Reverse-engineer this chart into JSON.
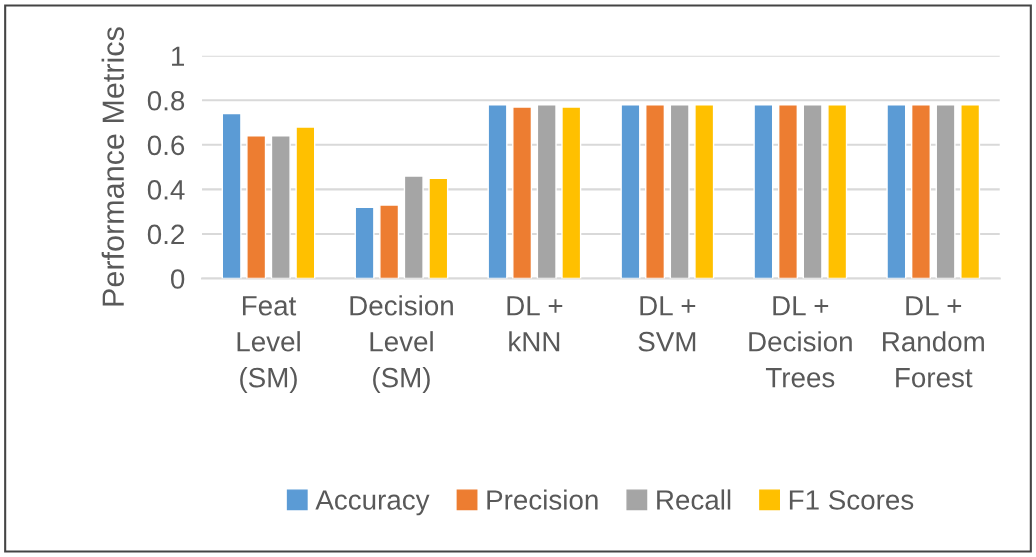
{
  "chart_data": {
    "type": "bar",
    "ylabel": "Performance Metrics",
    "categories": [
      "Feat\nLevel\n(SM)",
      "Decision\nLevel\n(SM)",
      "DL +\nkNN",
      "DL +\nSVM",
      "DL +\nDecision\nTrees",
      "DL +\nRandom\nForest"
    ],
    "series": [
      {
        "name": "Accuracy",
        "color": "#5b9bd5",
        "values": [
          0.74,
          0.32,
          0.78,
          0.78,
          0.78,
          0.78
        ]
      },
      {
        "name": "Precision",
        "color": "#ed7d31",
        "values": [
          0.64,
          0.33,
          0.77,
          0.78,
          0.78,
          0.78
        ]
      },
      {
        "name": "Recall",
        "color": "#a5a5a5",
        "values": [
          0.64,
          0.46,
          0.78,
          0.78,
          0.78,
          0.78
        ]
      },
      {
        "name": "F1 Scores",
        "color": "#ffc000",
        "values": [
          0.68,
          0.45,
          0.77,
          0.78,
          0.78,
          0.78
        ]
      }
    ],
    "ylim": [
      0,
      1
    ],
    "yticks": [
      0,
      0.2,
      0.4,
      0.6,
      0.8,
      1
    ],
    "grid": "y",
    "legend": "bottom"
  }
}
